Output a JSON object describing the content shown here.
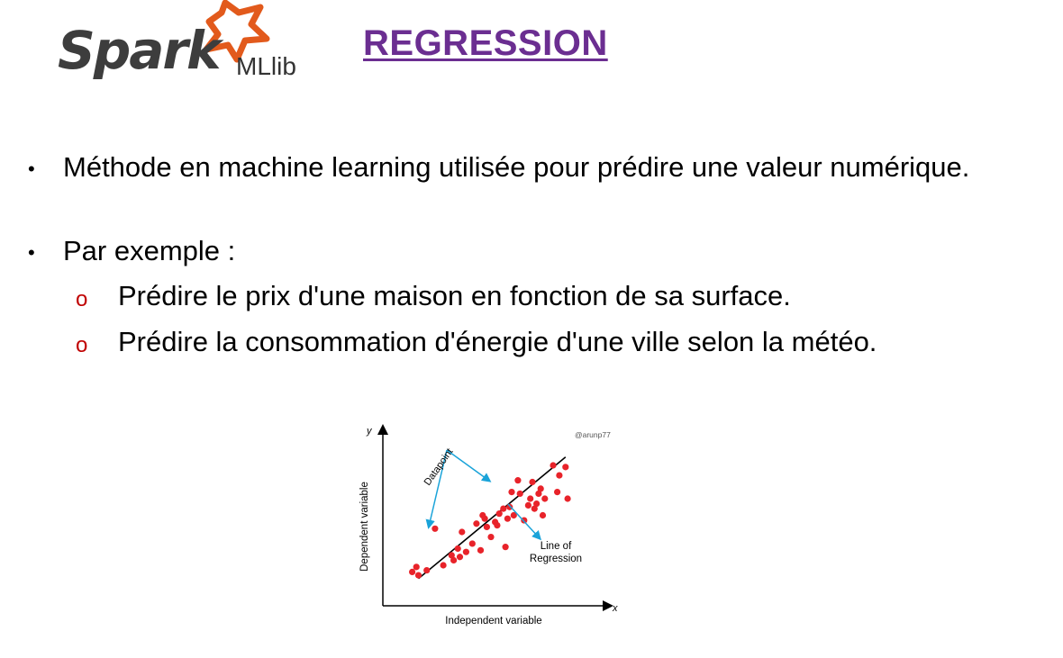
{
  "logo": {
    "word": "Spark",
    "sub": "MLlib",
    "star_color": "#e25a1c"
  },
  "title": "REGRESSION",
  "bullets": [
    {
      "text": "Méthode en machine learning utilisée pour prédire une valeur numérique."
    },
    {
      "text": "Par exemple :",
      "sub": [
        "Prédire le prix d'une maison en fonction de sa surface.",
        "Prédire la consommation d'énergie d'une ville selon la météo."
      ]
    }
  ],
  "colors": {
    "title": "#6b2e91",
    "sub_marker": "#c00000",
    "points": "#e8232a",
    "arrows": "#1aa3d9"
  },
  "chart_data": {
    "type": "scatter",
    "watermark": "@arunp77",
    "xlabel": "Independent variable",
    "ylabel": "Dependent variable",
    "x_axis_letter": "x",
    "y_axis_letter": "y",
    "annotations": [
      "Datapoint",
      "Line of",
      "Regression"
    ],
    "regression_line": {
      "from": [
        1.5,
        1.2
      ],
      "to": [
        8.6,
        8.5
      ]
    },
    "points": [
      [
        1.2,
        1.6
      ],
      [
        1.4,
        1.9
      ],
      [
        1.5,
        1.4
      ],
      [
        1.9,
        1.7
      ],
      [
        2.3,
        4.2
      ],
      [
        2.7,
        2.0
      ],
      [
        3.1,
        2.6
      ],
      [
        3.2,
        2.3
      ],
      [
        3.4,
        3.0
      ],
      [
        3.5,
        2.5
      ],
      [
        3.6,
        4.0
      ],
      [
        3.8,
        2.8
      ],
      [
        4.1,
        3.3
      ],
      [
        4.3,
        4.5
      ],
      [
        4.5,
        2.9
      ],
      [
        4.6,
        5.0
      ],
      [
        4.7,
        4.8
      ],
      [
        4.8,
        4.3
      ],
      [
        5.0,
        3.7
      ],
      [
        5.2,
        4.6
      ],
      [
        5.3,
        4.4
      ],
      [
        5.4,
        5.1
      ],
      [
        5.6,
        5.4
      ],
      [
        5.7,
        3.1
      ],
      [
        5.8,
        4.8
      ],
      [
        5.9,
        5.5
      ],
      [
        6.0,
        6.4
      ],
      [
        6.1,
        5.0
      ],
      [
        6.3,
        7.1
      ],
      [
        6.4,
        6.3
      ],
      [
        6.6,
        4.7
      ],
      [
        6.8,
        5.6
      ],
      [
        6.9,
        6.0
      ],
      [
        7.0,
        7.0
      ],
      [
        7.1,
        5.4
      ],
      [
        7.2,
        5.7
      ],
      [
        7.3,
        6.3
      ],
      [
        7.4,
        6.6
      ],
      [
        7.5,
        5.0
      ],
      [
        7.6,
        6.0
      ],
      [
        8.0,
        8.0
      ],
      [
        8.2,
        6.4
      ],
      [
        8.3,
        7.4
      ],
      [
        8.6,
        7.9
      ],
      [
        8.7,
        6.0
      ]
    ]
  }
}
